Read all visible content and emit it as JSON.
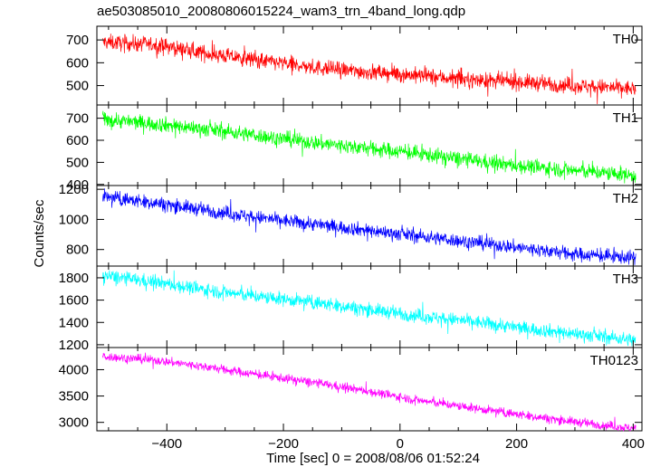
{
  "chart_data": {
    "type": "line",
    "title": "ae503085010_20080806015224_wam3_trn_4band_long.qdp",
    "xlabel": "Time [sec] 0 = 2008/08/06 01:52:24",
    "ylabel": "Counts/sec",
    "xlim": [
      -520,
      415
    ],
    "xticks": [
      -400,
      -200,
      0,
      200,
      400
    ],
    "xtick_labels": [
      "−400",
      "−200",
      "0",
      "200",
      "400"
    ],
    "x_start": -510,
    "x_end": 405,
    "grid": false,
    "series": [
      {
        "name": "TH0",
        "color": "#ff0000",
        "ylim": [
          415,
          760
        ],
        "yticks": [
          500,
          600,
          700
        ],
        "trend": [
          [
            -510,
            690
          ],
          [
            -420,
            680
          ],
          [
            -330,
            640
          ],
          [
            -240,
            610
          ],
          [
            -150,
            580
          ],
          [
            -60,
            560
          ],
          [
            30,
            545
          ],
          [
            120,
            525
          ],
          [
            210,
            515
          ],
          [
            300,
            500
          ],
          [
            405,
            485
          ]
        ],
        "noise": 45
      },
      {
        "name": "TH1",
        "color": "#00ff00",
        "ylim": [
          395,
          760
        ],
        "yticks": [
          400,
          500,
          600,
          700
        ],
        "trend": [
          [
            -510,
            695
          ],
          [
            -420,
            675
          ],
          [
            -330,
            650
          ],
          [
            -240,
            620
          ],
          [
            -150,
            590
          ],
          [
            -60,
            565
          ],
          [
            0,
            550
          ],
          [
            90,
            520
          ],
          [
            180,
            490
          ],
          [
            270,
            470
          ],
          [
            405,
            440
          ]
        ],
        "noise": 45
      },
      {
        "name": "TH2",
        "color": "#0000ff",
        "ylim": [
          690,
          1225
        ],
        "yticks": [
          800,
          1000,
          1200
        ],
        "trend": [
          [
            -510,
            1150
          ],
          [
            -420,
            1110
          ],
          [
            -330,
            1060
          ],
          [
            -240,
            1010
          ],
          [
            -150,
            970
          ],
          [
            -60,
            930
          ],
          [
            30,
            890
          ],
          [
            120,
            850
          ],
          [
            210,
            810
          ],
          [
            300,
            770
          ],
          [
            405,
            745
          ]
        ],
        "noise": 60
      },
      {
        "name": "TH3",
        "color": "#00ffff",
        "ylim": [
          1175,
          1905
        ],
        "yticks": [
          1200,
          1400,
          1600,
          1800
        ],
        "trend": [
          [
            -510,
            1820
          ],
          [
            -420,
            1760
          ],
          [
            -330,
            1690
          ],
          [
            -240,
            1630
          ],
          [
            -150,
            1580
          ],
          [
            -60,
            1520
          ],
          [
            30,
            1460
          ],
          [
            120,
            1410
          ],
          [
            210,
            1350
          ],
          [
            300,
            1300
          ],
          [
            405,
            1240
          ]
        ],
        "noise": 80
      },
      {
        "name": "TH0123",
        "color": "#ff00ff",
        "ylim": [
          2840,
          4420
        ],
        "yticks": [
          3000,
          3500,
          4000
        ],
        "trend": [
          [
            -510,
            4250
          ],
          [
            -420,
            4180
          ],
          [
            -330,
            4050
          ],
          [
            -240,
            3900
          ],
          [
            -150,
            3760
          ],
          [
            -60,
            3600
          ],
          [
            30,
            3420
          ],
          [
            120,
            3280
          ],
          [
            210,
            3140
          ],
          [
            300,
            3010
          ],
          [
            405,
            2880
          ]
        ],
        "noise": 110
      }
    ]
  }
}
